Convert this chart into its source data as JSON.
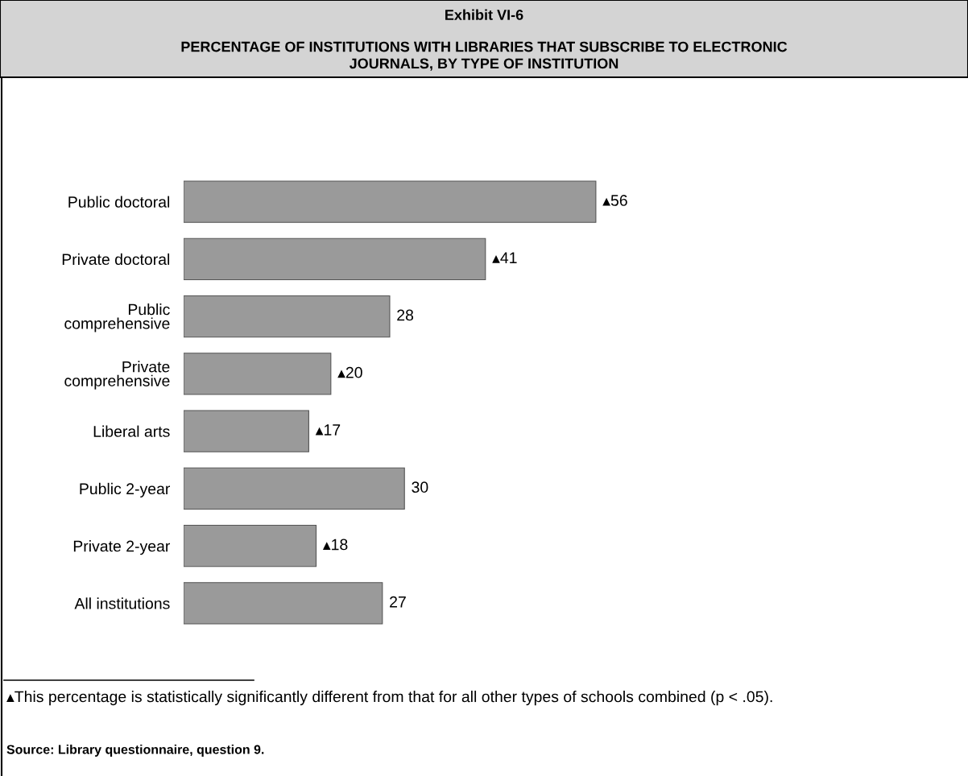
{
  "chart_data": {
    "type": "bar",
    "orientation": "horizontal",
    "title": "Exhibit VI-6",
    "subtitle": "PERCENTAGE OF INSTITUTIONS WITH LIBRARIES THAT SUBSCRIBE TO ELECTRONIC\nJOURNALS, BY TYPE OF INSTITUTION",
    "categories": [
      "Public doctoral",
      "Private doctoral",
      "Public\ncomprehensive",
      "Private\ncomprehensive",
      "Liberal arts",
      "Public 2-year",
      "Private 2-year",
      "All institutions"
    ],
    "values": [
      56,
      41,
      28,
      20,
      17,
      30,
      18,
      27
    ],
    "color": "#9a9a9a",
    "value_labels": [
      "▴56",
      "▴41",
      "28",
      "▴20",
      "▴17",
      "30",
      "▴18",
      "27"
    ],
    "annotations": [
      "▴This percentage is statistically significantly different from that for all other types of schools combined (p < .05).",
      "Source: Library questionnaire, question 9."
    ],
    "grid": false,
    "legend": false
  }
}
